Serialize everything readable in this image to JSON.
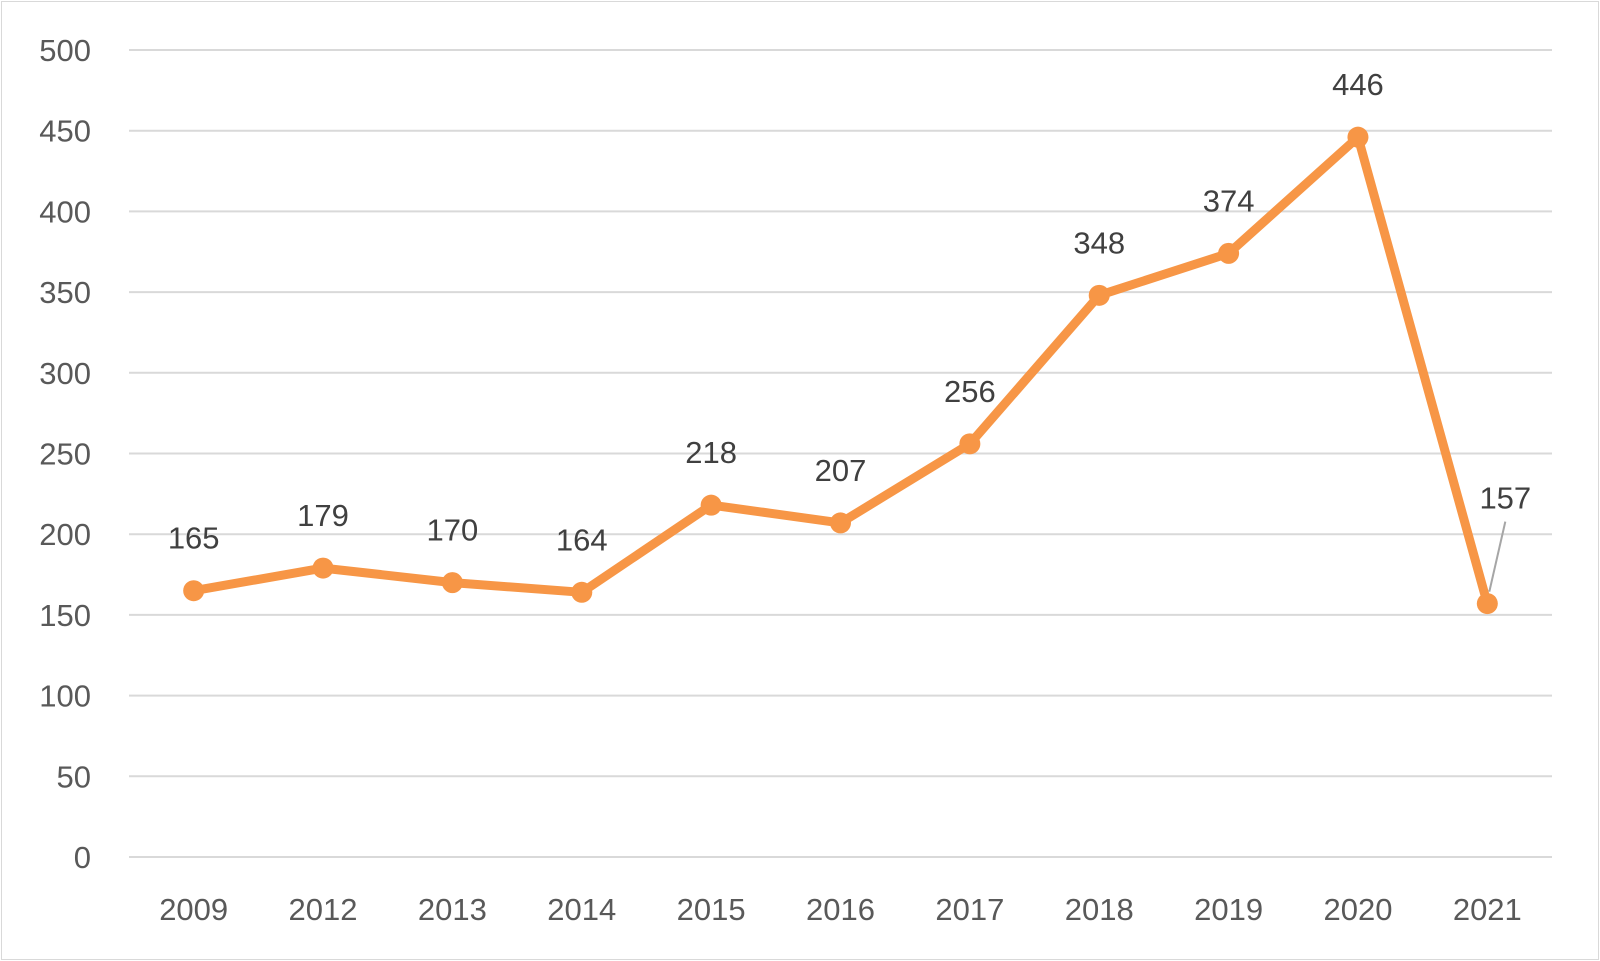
{
  "chart_data": {
    "type": "line",
    "title": "",
    "xlabel": "",
    "ylabel": "",
    "categories": [
      "2009",
      "2012",
      "2013",
      "2014",
      "2015",
      "2016",
      "2017",
      "2018",
      "2019",
      "2020",
      "2021"
    ],
    "series": [
      {
        "values": [
          165,
          179,
          170,
          164,
          218,
          207,
          256,
          348,
          374,
          446,
          157
        ],
        "color": "#f79646",
        "marker": "circle",
        "data_labels": true
      }
    ],
    "ylim": [
      0,
      500
    ],
    "yticks": [
      0,
      50,
      100,
      150,
      200,
      250,
      300,
      350,
      400,
      450,
      500
    ],
    "grid": "horizontal",
    "legend": "none"
  }
}
